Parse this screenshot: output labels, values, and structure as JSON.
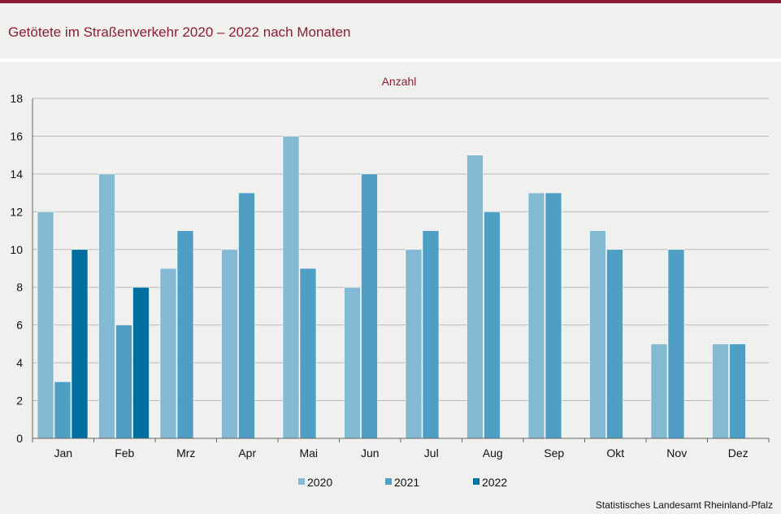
{
  "header": {
    "title": "Getötete im Straßenverkehr 2020 – 2022 nach Monaten"
  },
  "source": "Statistisches Landesamt Rheinland-Pfalz",
  "chart_data": {
    "type": "bar",
    "ylabel": "Anzahl",
    "ylim": [
      0,
      18
    ],
    "yticks": [
      "0",
      "2",
      "4",
      "6",
      "8",
      "10",
      "12",
      "14",
      "16",
      "18"
    ],
    "categories": [
      "Jan",
      "Feb",
      "Mrz",
      "Apr",
      "Mai",
      "Jun",
      "Jul",
      "Aug",
      "Sep",
      "Okt",
      "Nov",
      "Dez"
    ],
    "series": [
      {
        "name": "2020",
        "color": "#84b9d4",
        "values": [
          12,
          14,
          9,
          10,
          16,
          8,
          10,
          15,
          13,
          11,
          5,
          5
        ]
      },
      {
        "name": "2021",
        "color": "#4e9fc3",
        "values": [
          3,
          6,
          11,
          13,
          9,
          14,
          11,
          12,
          13,
          10,
          10,
          5
        ]
      },
      {
        "name": "2022",
        "color": "#006e9f",
        "values": [
          10,
          8,
          null,
          null,
          null,
          null,
          null,
          null,
          null,
          null,
          null,
          null
        ]
      }
    ],
    "grid": true,
    "legend": "bottom"
  }
}
